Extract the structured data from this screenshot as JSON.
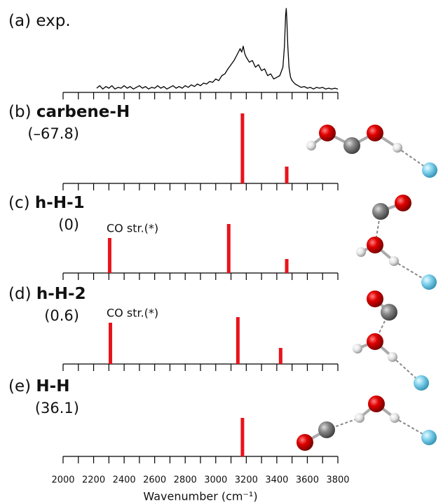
{
  "chart_data": [
    {
      "type": "line",
      "label": "(a)",
      "title": "exp.",
      "color": "#000000",
      "x": [
        2220,
        2240,
        2260,
        2280,
        2300,
        2320,
        2340,
        2360,
        2380,
        2400,
        2420,
        2440,
        2460,
        2480,
        2500,
        2520,
        2540,
        2560,
        2580,
        2600,
        2620,
        2640,
        2660,
        2680,
        2700,
        2720,
        2740,
        2760,
        2780,
        2800,
        2820,
        2840,
        2860,
        2880,
        2900,
        2920,
        2940,
        2960,
        2980,
        3000,
        3020,
        3040,
        3060,
        3080,
        3100,
        3120,
        3140,
        3160,
        3170,
        3180,
        3190,
        3200,
        3220,
        3240,
        3260,
        3280,
        3300,
        3320,
        3340,
        3360,
        3380,
        3400,
        3420,
        3440,
        3450,
        3458,
        3462,
        3466,
        3472,
        3480,
        3490,
        3500,
        3520,
        3540,
        3560,
        3580,
        3600,
        3620,
        3640,
        3660,
        3680,
        3700,
        3720,
        3740,
        3760,
        3780,
        3800
      ],
      "values": [
        0.05,
        0.08,
        0.04,
        0.07,
        0.05,
        0.08,
        0.04,
        0.06,
        0.05,
        0.08,
        0.05,
        0.07,
        0.04,
        0.06,
        0.08,
        0.05,
        0.07,
        0.04,
        0.06,
        0.05,
        0.08,
        0.05,
        0.07,
        0.04,
        0.06,
        0.08,
        0.05,
        0.07,
        0.05,
        0.08,
        0.06,
        0.09,
        0.07,
        0.1,
        0.08,
        0.11,
        0.1,
        0.13,
        0.12,
        0.16,
        0.14,
        0.2,
        0.22,
        0.28,
        0.33,
        0.38,
        0.45,
        0.52,
        0.48,
        0.55,
        0.46,
        0.42,
        0.36,
        0.38,
        0.3,
        0.33,
        0.26,
        0.28,
        0.2,
        0.22,
        0.16,
        0.18,
        0.2,
        0.3,
        0.55,
        0.92,
        1.0,
        0.85,
        0.55,
        0.3,
        0.18,
        0.14,
        0.1,
        0.08,
        0.06,
        0.07,
        0.05,
        0.06,
        0.04,
        0.06,
        0.05,
        0.06,
        0.04,
        0.05,
        0.04,
        0.05,
        0.04
      ],
      "xlim": [
        2000,
        3800
      ],
      "ylim": [
        0,
        1
      ],
      "xticks": [
        2000,
        2200,
        2400,
        2600,
        2800,
        3000,
        3200,
        3400,
        3600,
        3800
      ],
      "xminorticks": [
        2100,
        2300,
        2500,
        2700,
        2900,
        3100,
        3300,
        3500,
        3700
      ],
      "xtick_labels": false
    },
    {
      "type": "bar",
      "label": "(b)",
      "title": "carbene-H",
      "subtitle": "(–67.8)",
      "color": "#e8141c",
      "x": [
        3175,
        3465
      ],
      "values": [
        1.0,
        0.24
      ],
      "xlim": [
        2000,
        3800
      ],
      "ylim": [
        0,
        1
      ],
      "xticks": [
        2000,
        2200,
        2400,
        2600,
        2800,
        3000,
        3200,
        3400,
        3600,
        3800
      ],
      "xminorticks": [
        2100,
        2300,
        2500,
        2700,
        2900,
        3100,
        3300,
        3500,
        3700
      ],
      "xtick_labels": false
    },
    {
      "type": "bar",
      "label": "(c)",
      "title": "h-H-1",
      "subtitle": "(0)",
      "annotation": "CO str.(*)",
      "color": "#e8141c",
      "x": [
        2305,
        3085,
        3465
      ],
      "values": [
        0.5,
        0.7,
        0.2
      ],
      "xlim": [
        2000,
        3800
      ],
      "ylim": [
        0,
        1
      ],
      "xticks": [
        2000,
        2200,
        2400,
        2600,
        2800,
        3000,
        3200,
        3400,
        3600,
        3800
      ],
      "xminorticks": [
        2100,
        2300,
        2500,
        2700,
        2900,
        3100,
        3300,
        3500,
        3700
      ],
      "xtick_labels": false
    },
    {
      "type": "bar",
      "label": "(d)",
      "title": "h-H-2",
      "subtitle": "(0.6)",
      "annotation": "CO str.(*)",
      "color": "#e8141c",
      "x": [
        2310,
        3145,
        3425
      ],
      "values": [
        0.59,
        0.67,
        0.23
      ],
      "xlim": [
        2000,
        3800
      ],
      "ylim": [
        0,
        1
      ],
      "xticks": [
        2000,
        2200,
        2400,
        2600,
        2800,
        3000,
        3200,
        3400,
        3600,
        3800
      ],
      "xminorticks": [
        2100,
        2300,
        2500,
        2700,
        2900,
        3100,
        3300,
        3500,
        3700
      ],
      "xtick_labels": false
    },
    {
      "type": "bar",
      "label": "(e)",
      "title": "H-H",
      "subtitle": "(36.1)",
      "color": "#e8141c",
      "x": [
        3175
      ],
      "values": [
        0.55
      ],
      "xlim": [
        2000,
        3800
      ],
      "ylim": [
        0,
        1
      ],
      "xticks": [
        2000,
        2200,
        2400,
        2600,
        2800,
        3000,
        3200,
        3400,
        3600,
        3800
      ],
      "xminorticks": [
        2100,
        2300,
        2500,
        2700,
        2900,
        3100,
        3300,
        3500,
        3700
      ],
      "xtick_labels": true,
      "xlabel": "Wavenumber (cm⁻¹)"
    }
  ]
}
